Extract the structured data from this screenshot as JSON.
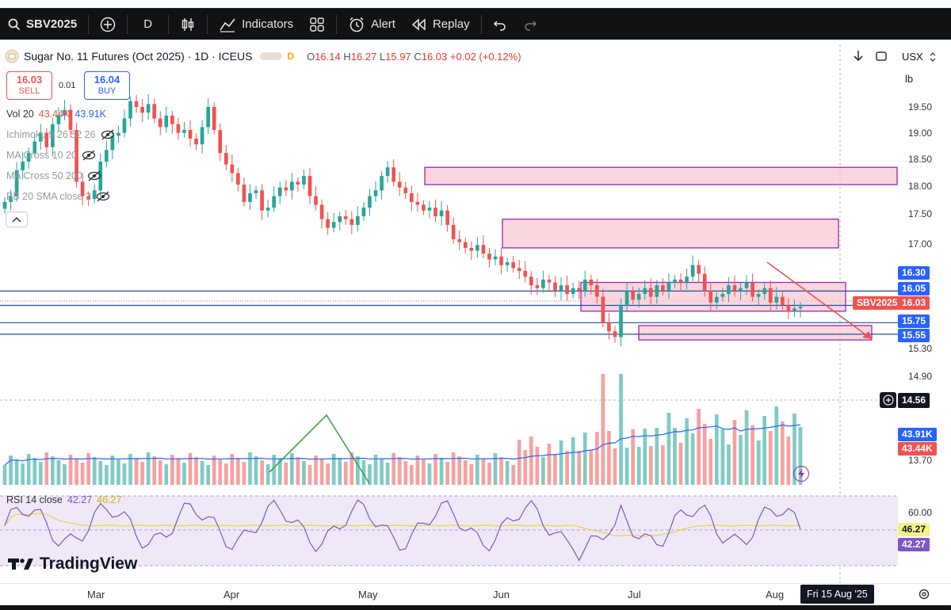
{
  "toolbar": {
    "symbol": "SBV2025",
    "interval": "D",
    "indicators_label": "Indicators",
    "alert_label": "Alert",
    "replay_label": "Replay"
  },
  "legend": {
    "title": "Sugar No. 11 Futures (Oct 2025) · 1D · ICEUS",
    "badge": "D",
    "open_label": "O",
    "open": "16.14",
    "high_label": "H",
    "high": "16.27",
    "low_label": "L",
    "low": "15.97",
    "close_label": "C",
    "close": "16.03",
    "change": "+0.02 (+0.12%)"
  },
  "trade": {
    "sell_price": "16.03",
    "sell_label": "SELL",
    "spread": "0.01",
    "buy_price": "16.04",
    "buy_label": "BUY"
  },
  "indicators": {
    "vol": "Vol 20",
    "vol_value1": "43.44K",
    "vol_value2": "43.91K",
    "ichimoku": "Ichimoku 9 26 52 26",
    "ma1": "MA Cross 10 20",
    "ma2": "MA Cross 50 200",
    "bb": "BB 20 SMA close 2",
    "rsi": "RSI 14 close",
    "rsi_value": "42.27",
    "rsi_ma": "46.27"
  },
  "right_header": {
    "currency": "USX",
    "unit": "lb"
  },
  "price_axis": [
    "19.50",
    "19.00",
    "18.50",
    "18.00",
    "17.50",
    "17.00",
    "15.30",
    "14.90",
    "13.70"
  ],
  "price_tags": {
    "level1": "16.30",
    "level2": "16.05",
    "symbol": "SBV2025",
    "last": "16.03",
    "level3": "15.75",
    "level4": "15.55",
    "crosshair": "14.56",
    "vol_ma": "43.91K",
    "vol": "43.44K",
    "rsi_ma": "46.27",
    "rsi": "42.27"
  },
  "rsi_axis": {
    "upper": "60.00"
  },
  "time_axis": {
    "labels": [
      "Mar",
      "Apr",
      "May",
      "Jun",
      "Jul",
      "Aug"
    ],
    "cursor_date": "Fri 15 Aug '25"
  },
  "brand": "TradingView",
  "colors": {
    "up": "#26a69a",
    "down": "#ef5350",
    "zone_fill": "#f8c8d4",
    "zone_border": "#9c27b0",
    "level_line": "#2962ff",
    "toolbar_bg": "#111214"
  },
  "chart_data": {
    "type": "candlestick",
    "symbol": "SBV2025",
    "interval": "1D",
    "months": [
      "Mar",
      "Apr",
      "May",
      "Jun",
      "Jul",
      "Aug"
    ],
    "horizontal_levels": [
      16.3,
      16.05,
      15.75,
      15.55
    ],
    "zones": [
      {
        "low": 18.15,
        "high": 18.45
      },
      {
        "low": 17.05,
        "high": 17.55
      },
      {
        "low": 15.95,
        "high": 16.45
      },
      {
        "low": 15.45,
        "high": 15.7
      }
    ],
    "last_price": 16.03,
    "closes": [
      17.85,
      17.95,
      18.4,
      18.55,
      18.7,
      18.9,
      19.05,
      18.8,
      19.2,
      19.35,
      19.45,
      19.1,
      18.2,
      17.95,
      17.9,
      18.05,
      18.55,
      18.75,
      19.0,
      19.05,
      19.3,
      19.6,
      19.5,
      19.4,
      19.55,
      19.3,
      19.15,
      19.35,
      19.2,
      19.05,
      19.1,
      18.95,
      18.85,
      19.15,
      19.5,
      19.1,
      18.7,
      18.5,
      18.35,
      18.15,
      17.85,
      18.0,
      18.05,
      17.7,
      17.75,
      17.95,
      18.1,
      18.05,
      18.2,
      18.15,
      18.3,
      17.95,
      17.8,
      17.55,
      17.4,
      17.5,
      17.6,
      17.55,
      17.45,
      17.6,
      17.75,
      17.95,
      18.05,
      18.3,
      18.45,
      18.2,
      18.1,
      18.0,
      17.85,
      17.8,
      17.7,
      17.75,
      17.6,
      17.7,
      17.45,
      17.2,
      17.15,
      17.05,
      17.0,
      17.1,
      16.95,
      16.85,
      16.9,
      16.75,
      16.8,
      16.7,
      16.65,
      16.55,
      16.4,
      16.35,
      16.5,
      16.45,
      16.3,
      16.4,
      16.25,
      16.35,
      16.3,
      16.5,
      16.4,
      16.2,
      15.75,
      15.6,
      15.5,
      16.05,
      16.3,
      16.15,
      16.25,
      16.35,
      16.2,
      16.4,
      16.3,
      16.45,
      16.5,
      16.45,
      16.55,
      16.75,
      16.6,
      16.3,
      16.1,
      16.2,
      16.25,
      16.4,
      16.3,
      16.35,
      16.45,
      16.2,
      16.25,
      16.35,
      16.1,
      16.2,
      16.05,
      15.95,
      16.0,
      16.03
    ],
    "volume_ma_last": "43.91K",
    "volume_last": "43.44K",
    "rsi_last": 42.27,
    "rsi_ma_last": 46.27,
    "rsi_upper": 60
  }
}
